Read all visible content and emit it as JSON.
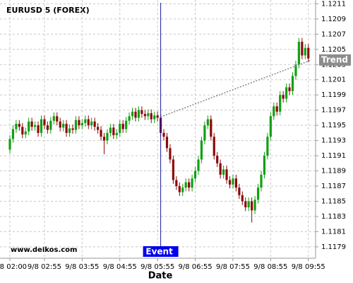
{
  "chart_data": {
    "type": "candlestick",
    "title": "EURUSD 5 (FOREX)",
    "watermark": "www.delkos.com",
    "x_label": "Date",
    "up_color": "#12a012",
    "down_color": "#8b0a0a",
    "categories": [
      "9/8 02:00",
      null,
      null,
      null,
      null,
      null,
      null,
      null,
      null,
      null,
      null,
      "9/8 02:55",
      null,
      null,
      null,
      null,
      null,
      null,
      null,
      null,
      null,
      null,
      null,
      "9/8 03:55",
      null,
      null,
      null,
      null,
      null,
      null,
      null,
      null,
      null,
      null,
      null,
      "9/8 04:55",
      null,
      null,
      null,
      null,
      null,
      null,
      null,
      null,
      null,
      null,
      null,
      "9/8 05:55",
      null,
      null,
      null,
      null,
      null,
      null,
      null,
      null,
      null,
      null,
      null,
      "9/8 06:55",
      null,
      null,
      null,
      null,
      null,
      null,
      null,
      null,
      null,
      null,
      null,
      "9/8 07:55",
      null,
      null,
      null,
      null,
      null,
      null,
      null,
      null,
      null,
      null,
      null,
      "9/8 08:55",
      null,
      null,
      null,
      null,
      null,
      null,
      null,
      null,
      null,
      null,
      null,
      "9/8 09:55"
    ],
    "open": [
      1.11918,
      1.11932,
      1.11945,
      1.11952,
      1.11948,
      1.11938,
      1.11942,
      1.11955,
      1.11948,
      1.1195,
      1.1194,
      1.11958,
      1.1195,
      1.11944,
      1.11956,
      1.11962,
      1.11955,
      1.11947,
      1.11952,
      1.1194,
      1.11946,
      1.11944,
      1.11957,
      1.1195,
      1.11953,
      1.11958,
      1.1195,
      1.11955,
      1.11948,
      1.11944,
      1.11935,
      1.1193,
      1.1194,
      1.11947,
      1.11937,
      1.1194,
      1.11952,
      1.11945,
      1.11956,
      1.11962,
      1.11968,
      1.1196,
      1.1197,
      1.11965,
      1.11962,
      1.11966,
      1.11958,
      1.11963,
      1.1196,
      1.1194,
      1.11935,
      1.1192,
      1.11905,
      1.11878,
      1.1187,
      1.11862,
      1.11868,
      1.11875,
      1.11868,
      1.1188,
      1.1189,
      1.11905,
      1.1193,
      1.1195,
      1.11958,
      1.11935,
      1.1191,
      1.119,
      1.11885,
      1.11892,
      1.11878,
      1.11872,
      1.1188,
      1.11868,
      1.11858,
      1.1185,
      1.11842,
      1.1185,
      1.11838,
      1.11852,
      1.11868,
      1.11885,
      1.1191,
      1.11935,
      1.11962,
      1.11975,
      1.11968,
      1.1199,
      1.11985,
      1.12,
      1.11995,
      1.12015,
      1.1203,
      1.1206,
      1.12042,
      1.12052
    ],
    "high": [
      1.11937,
      1.1195,
      1.11957,
      1.11957,
      1.11953,
      1.11947,
      1.1196,
      1.1196,
      1.11955,
      1.11955,
      1.11963,
      1.11963,
      1.11955,
      1.11961,
      1.11967,
      1.11967,
      1.1196,
      1.11957,
      1.11957,
      1.11951,
      1.11951,
      1.11962,
      1.11962,
      1.11958,
      1.11963,
      1.11963,
      1.1196,
      1.1196,
      1.11953,
      1.11949,
      1.1194,
      1.11945,
      1.11952,
      1.11952,
      1.11945,
      1.11957,
      1.11957,
      1.11961,
      1.11967,
      1.11973,
      1.11973,
      1.11975,
      1.11975,
      1.1197,
      1.11971,
      1.11971,
      1.11968,
      1.11968,
      1.11965,
      1.11945,
      1.1194,
      1.11925,
      1.1191,
      1.11883,
      1.11875,
      1.11873,
      1.1188,
      1.1188,
      1.11885,
      1.11895,
      1.1191,
      1.11935,
      1.11955,
      1.11963,
      1.11963,
      1.1194,
      1.11915,
      1.11905,
      1.11897,
      1.11897,
      1.11883,
      1.11885,
      1.11885,
      1.11873,
      1.11863,
      1.11855,
      1.11855,
      1.11855,
      1.11857,
      1.11873,
      1.1189,
      1.11915,
      1.1194,
      1.11967,
      1.1198,
      1.1198,
      1.11995,
      1.11995,
      1.12005,
      1.12005,
      1.1202,
      1.12035,
      1.12065,
      1.12065,
      1.12057,
      1.12057
    ],
    "low": [
      1.11913,
      1.11927,
      1.1194,
      1.11943,
      1.11933,
      1.11933,
      1.11937,
      1.11943,
      1.11943,
      1.11935,
      1.11935,
      1.11945,
      1.11939,
      1.11939,
      1.11951,
      1.1195,
      1.11942,
      1.11942,
      1.11935,
      1.11935,
      1.11939,
      1.11939,
      1.11945,
      1.11945,
      1.11948,
      1.11945,
      1.11945,
      1.11943,
      1.11939,
      1.1193,
      1.11912,
      1.11925,
      1.11935,
      1.11932,
      1.11932,
      1.11935,
      1.1194,
      1.1194,
      1.11951,
      1.11957,
      1.11955,
      1.11955,
      1.1196,
      1.11957,
      1.11957,
      1.11953,
      1.11953,
      1.11955,
      1.11935,
      1.1193,
      1.11915,
      1.119,
      1.11873,
      1.11865,
      1.11857,
      1.11857,
      1.11863,
      1.11863,
      1.11863,
      1.11875,
      1.11885,
      1.119,
      1.11925,
      1.11945,
      1.1193,
      1.11905,
      1.11895,
      1.1188,
      1.1188,
      1.11873,
      1.11867,
      1.11867,
      1.11863,
      1.11853,
      1.11845,
      1.11837,
      1.11837,
      1.11822,
      1.11833,
      1.11847,
      1.11863,
      1.1188,
      1.11905,
      1.1193,
      1.11957,
      1.11963,
      1.11963,
      1.1198,
      1.1198,
      1.1199,
      1.1199,
      1.1201,
      1.12025,
      1.12037,
      1.12037,
      1.12033
    ],
    "close": [
      1.11932,
      1.11945,
      1.11952,
      1.11948,
      1.11938,
      1.11942,
      1.11955,
      1.11948,
      1.1195,
      1.1194,
      1.11958,
      1.1195,
      1.11944,
      1.11956,
      1.11962,
      1.11955,
      1.11947,
      1.11952,
      1.1194,
      1.11946,
      1.11944,
      1.11957,
      1.1195,
      1.11953,
      1.11958,
      1.1195,
      1.11955,
      1.11948,
      1.11944,
      1.11935,
      1.1193,
      1.1194,
      1.11947,
      1.11937,
      1.1194,
      1.11952,
      1.11945,
      1.11956,
      1.11962,
      1.11968,
      1.1196,
      1.1197,
      1.11965,
      1.11962,
      1.11966,
      1.11958,
      1.11963,
      1.1196,
      1.1194,
      1.11935,
      1.1192,
      1.11905,
      1.11878,
      1.1187,
      1.11862,
      1.11868,
      1.11875,
      1.11868,
      1.1188,
      1.1189,
      1.11905,
      1.1193,
      1.1195,
      1.11958,
      1.11935,
      1.1191,
      1.119,
      1.11885,
      1.11892,
      1.11878,
      1.11872,
      1.1188,
      1.11868,
      1.11858,
      1.1185,
      1.11842,
      1.1185,
      1.11838,
      1.11852,
      1.11868,
      1.11885,
      1.1191,
      1.11935,
      1.11962,
      1.11975,
      1.11968,
      1.1199,
      1.11985,
      1.12,
      1.11995,
      1.12015,
      1.1203,
      1.1206,
      1.12042,
      1.12052,
      1.12038
    ],
    "ylim": [
      1.11775,
      1.12115
    ],
    "yticks": [
      1.1179,
      1.1181,
      1.1183,
      1.1185,
      1.1187,
      1.1189,
      1.1191,
      1.1193,
      1.1195,
      1.1197,
      1.1199,
      1.1201,
      1.1203,
      1.1205,
      1.1207,
      1.1209,
      1.1211
    ],
    "grid": true,
    "event": {
      "label": "Event",
      "x": 48
    },
    "trend": {
      "label": "Trend",
      "start": {
        "x": 48,
        "y": 1.11961
      },
      "end": {
        "x": 96,
        "y": 1.12036
      }
    }
  }
}
